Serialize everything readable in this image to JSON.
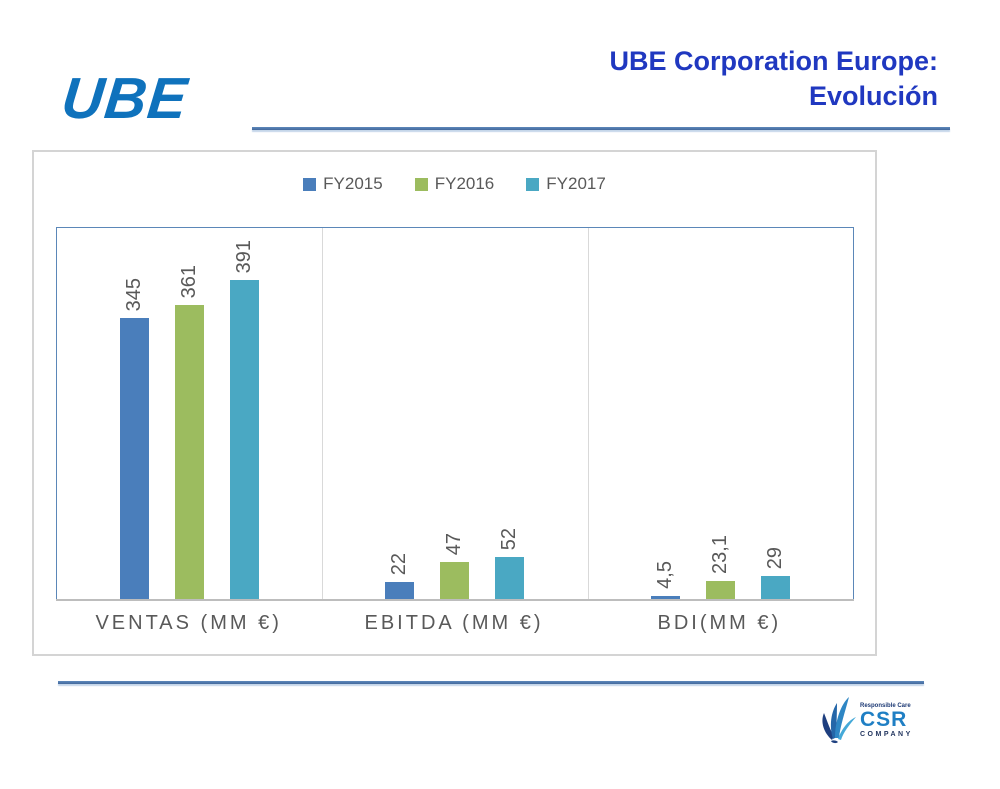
{
  "header": {
    "logo_text": "UBE",
    "title_line1": "UBE Corporation Europe:",
    "title_line2": "Evolución"
  },
  "chart_data": {
    "type": "bar",
    "title": "",
    "categories": [
      "VENTAS (MM €)",
      "EBITDA (MM €)",
      "BDI(MM €)"
    ],
    "series": [
      {
        "name": "FY2015",
        "color": "#4a7ebb",
        "values": [
          345,
          22,
          4.5
        ],
        "labels": [
          "345",
          "22",
          "4,5"
        ]
      },
      {
        "name": "FY2016",
        "color": "#9cbc5f",
        "values": [
          361,
          47,
          23.1
        ],
        "labels": [
          "361",
          "47",
          "23,1"
        ]
      },
      {
        "name": "FY2017",
        "color": "#4aa8c3",
        "values": [
          391,
          52,
          29
        ],
        "labels": [
          "391",
          "52",
          "29"
        ]
      }
    ],
    "xlabel": "",
    "ylabel": "",
    "ylim": [
      0,
      455
    ],
    "grid": false,
    "legend_position": "top",
    "value_label_rotation": -90
  },
  "footer": {
    "csr_logo": {
      "tagline": "Responsible Care",
      "name": "CSR",
      "subtitle": "COMPANY"
    }
  }
}
